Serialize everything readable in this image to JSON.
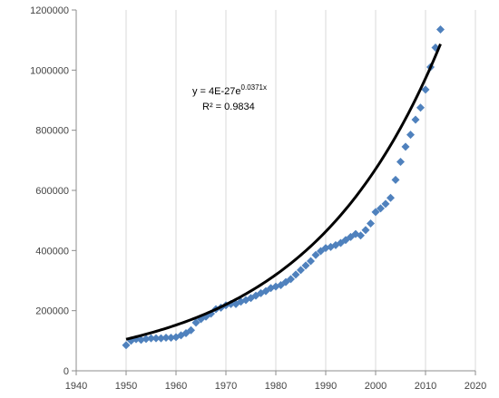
{
  "chart_data": {
    "type": "scatter",
    "title": "",
    "xlabel": "",
    "ylabel": "",
    "xlim": [
      1940,
      2020
    ],
    "ylim": [
      0,
      1200000
    ],
    "x_ticks": [
      1940,
      1950,
      1960,
      1970,
      1980,
      1990,
      2000,
      2010,
      2020
    ],
    "y_ticks": [
      0,
      200000,
      400000,
      600000,
      800000,
      1000000,
      1200000
    ],
    "grid": {
      "x": true,
      "y": false
    },
    "legend": "none",
    "series": [
      {
        "marker": "diamond",
        "color": "#4f81bd",
        "x": [
          1950,
          1951,
          1952,
          1953,
          1954,
          1955,
          1956,
          1957,
          1958,
          1959,
          1960,
          1961,
          1962,
          1963,
          1964,
          1965,
          1966,
          1967,
          1968,
          1969,
          1970,
          1971,
          1972,
          1973,
          1974,
          1975,
          1976,
          1977,
          1978,
          1979,
          1980,
          1981,
          1982,
          1983,
          1984,
          1985,
          1986,
          1987,
          1988,
          1989,
          1990,
          1991,
          1992,
          1993,
          1994,
          1995,
          1996,
          1997,
          1998,
          1999,
          2000,
          2001,
          2002,
          2003,
          2004,
          2005,
          2006,
          2007,
          2008,
          2009,
          2010,
          2011,
          2012,
          2013
        ],
        "y": [
          85000,
          100000,
          105000,
          103000,
          106000,
          108000,
          108000,
          108000,
          110000,
          110000,
          112000,
          118000,
          125000,
          135000,
          160000,
          172000,
          180000,
          190000,
          205000,
          210000,
          218000,
          222000,
          222000,
          230000,
          235000,
          242000,
          250000,
          258000,
          265000,
          275000,
          280000,
          285000,
          295000,
          305000,
          320000,
          335000,
          350000,
          365000,
          385000,
          398000,
          408000,
          412000,
          418000,
          425000,
          435000,
          445000,
          455000,
          450000,
          468000,
          490000,
          528000,
          540000,
          555000,
          575000,
          635000,
          695000,
          745000,
          785000,
          835000,
          875000,
          935000,
          1010000,
          1075000,
          1135000
        ]
      }
    ],
    "trendline": {
      "type": "exponential",
      "color": "#000000",
      "a": 4e-27,
      "b": 0.0371,
      "x_range": [
        1950,
        2013
      ]
    },
    "annotation": {
      "equation_prefix": "y = 4E-27e",
      "equation_exponent": "0.0371x",
      "r_squared": "R² = 0.9834"
    }
  }
}
